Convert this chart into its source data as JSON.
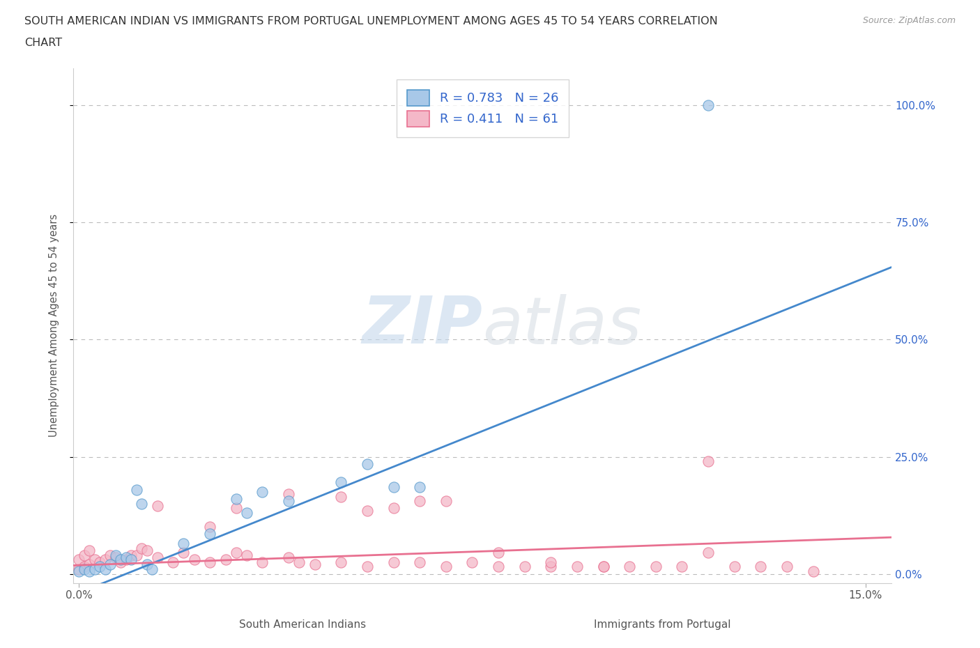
{
  "title_line1": "SOUTH AMERICAN INDIAN VS IMMIGRANTS FROM PORTUGAL UNEMPLOYMENT AMONG AGES 45 TO 54 YEARS CORRELATION",
  "title_line2": "CHART",
  "source": "Source: ZipAtlas.com",
  "xlabel_bottom": "South American Indians",
  "xlabel_bottom2": "Immigrants from Portugal",
  "ylabel": "Unemployment Among Ages 45 to 54 years",
  "watermark_zip": "ZIP",
  "watermark_atlas": "atlas",
  "legend_r1_label": "R = 0.783   N = 26",
  "legend_r2_label": "R = 0.411   N = 61",
  "color_blue_fill": "#a8c8e8",
  "color_pink_fill": "#f4b8c8",
  "color_blue_edge": "#5599cc",
  "color_pink_edge": "#e87090",
  "color_blue_line": "#4488cc",
  "color_pink_line": "#e87090",
  "color_text_blue": "#3366cc",
  "ytick_labels": [
    "0.0%",
    "25.0%",
    "50.0%",
    "75.0%",
    "100.0%"
  ],
  "ytick_values": [
    0.0,
    0.25,
    0.5,
    0.75,
    1.0
  ],
  "xlim": [
    -0.001,
    0.155
  ],
  "ylim": [
    -0.02,
    1.08
  ],
  "blue_scatter_x": [
    0.0,
    0.001,
    0.002,
    0.003,
    0.004,
    0.005,
    0.006,
    0.007,
    0.008,
    0.009,
    0.01,
    0.011,
    0.012,
    0.013,
    0.014,
    0.02,
    0.025,
    0.03,
    0.032,
    0.035,
    0.04,
    0.05,
    0.055,
    0.06,
    0.065,
    0.12
  ],
  "blue_scatter_y": [
    0.005,
    0.01,
    0.005,
    0.01,
    0.015,
    0.01,
    0.02,
    0.04,
    0.03,
    0.035,
    0.03,
    0.18,
    0.15,
    0.02,
    0.01,
    0.065,
    0.085,
    0.16,
    0.13,
    0.175,
    0.155,
    0.195,
    0.235,
    0.185,
    0.185,
    1.0
  ],
  "pink_scatter_x": [
    0.0,
    0.0,
    0.001,
    0.001,
    0.002,
    0.002,
    0.003,
    0.004,
    0.005,
    0.006,
    0.007,
    0.008,
    0.009,
    0.01,
    0.011,
    0.012,
    0.013,
    0.015,
    0.018,
    0.02,
    0.022,
    0.025,
    0.028,
    0.03,
    0.032,
    0.035,
    0.04,
    0.042,
    0.045,
    0.05,
    0.055,
    0.06,
    0.065,
    0.07,
    0.075,
    0.08,
    0.085,
    0.09,
    0.095,
    0.1,
    0.105,
    0.11,
    0.115,
    0.12,
    0.125,
    0.13,
    0.135,
    0.14,
    0.015,
    0.025,
    0.03,
    0.04,
    0.05,
    0.055,
    0.06,
    0.065,
    0.07,
    0.08,
    0.09,
    0.1,
    0.12
  ],
  "pink_scatter_y": [
    0.01,
    0.03,
    0.015,
    0.04,
    0.02,
    0.05,
    0.03,
    0.025,
    0.03,
    0.04,
    0.035,
    0.025,
    0.03,
    0.04,
    0.04,
    0.055,
    0.05,
    0.035,
    0.025,
    0.045,
    0.03,
    0.025,
    0.03,
    0.045,
    0.04,
    0.025,
    0.035,
    0.025,
    0.02,
    0.025,
    0.015,
    0.025,
    0.025,
    0.015,
    0.025,
    0.015,
    0.015,
    0.015,
    0.015,
    0.015,
    0.015,
    0.015,
    0.015,
    0.24,
    0.015,
    0.015,
    0.015,
    0.005,
    0.145,
    0.1,
    0.14,
    0.17,
    0.165,
    0.135,
    0.14,
    0.155,
    0.155,
    0.045,
    0.025,
    0.015,
    0.045
  ],
  "blue_line_x": [
    -0.001,
    0.155
  ],
  "blue_line_y": [
    -0.045,
    0.655
  ],
  "pink_line_x": [
    -0.001,
    0.155
  ],
  "pink_line_y": [
    0.018,
    0.078
  ]
}
